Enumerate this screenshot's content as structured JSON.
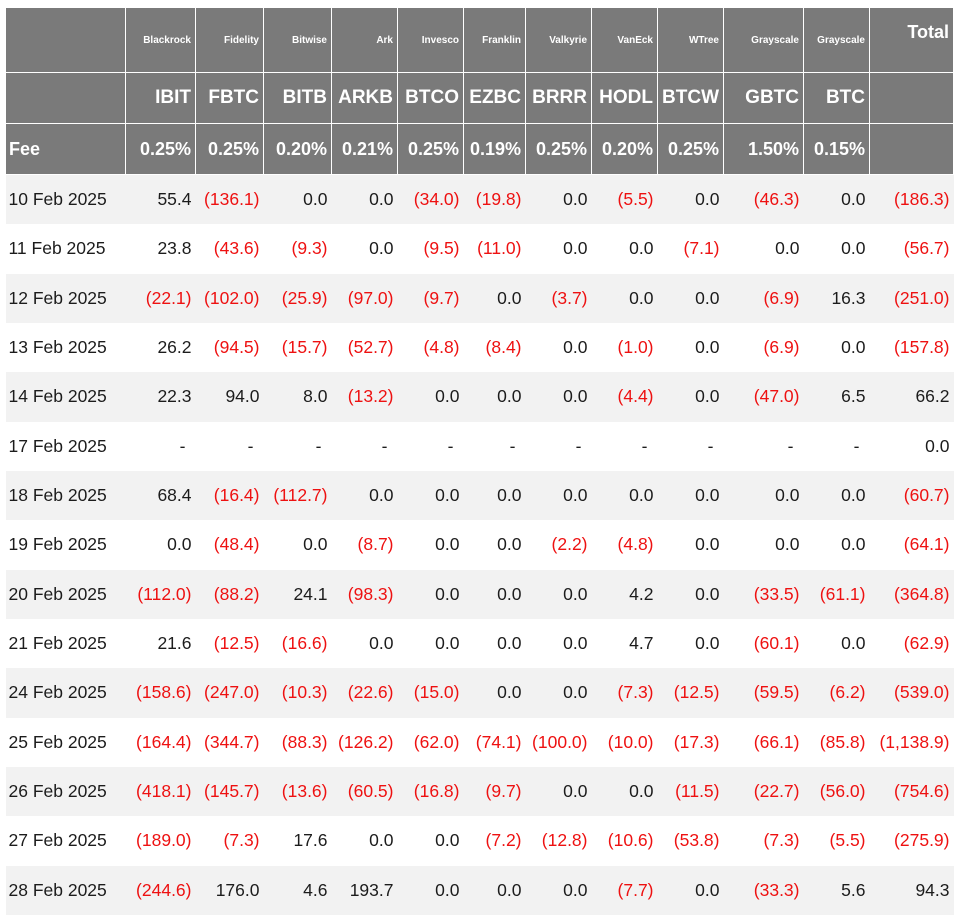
{
  "table": {
    "columns": [
      {
        "issuer": "Blackrock",
        "ticker": "IBIT",
        "fee": "0.25%"
      },
      {
        "issuer": "Fidelity",
        "ticker": "FBTC",
        "fee": "0.25%"
      },
      {
        "issuer": "Bitwise",
        "ticker": "BITB",
        "fee": "0.20%"
      },
      {
        "issuer": "Ark",
        "ticker": "ARKB",
        "fee": "0.21%"
      },
      {
        "issuer": "Invesco",
        "ticker": "BTCO",
        "fee": "0.25%"
      },
      {
        "issuer": "Franklin",
        "ticker": "EZBC",
        "fee": "0.19%"
      },
      {
        "issuer": "Valkyrie",
        "ticker": "BRRR",
        "fee": "0.25%"
      },
      {
        "issuer": "VanEck",
        "ticker": "HODL",
        "fee": "0.20%"
      },
      {
        "issuer": "WTree",
        "ticker": "BTCW",
        "fee": "0.25%"
      },
      {
        "issuer": "Grayscale",
        "ticker": "GBTC",
        "fee": "1.50%"
      },
      {
        "issuer": "Grayscale",
        "ticker": "BTC",
        "fee": "0.15%"
      }
    ],
    "total_label": "Total",
    "fee_label": "Fee",
    "rows": [
      {
        "date": "10 Feb 2025",
        "values": [
          "55.4",
          "(136.1)",
          "0.0",
          "0.0",
          "(34.0)",
          "(19.8)",
          "0.0",
          "(5.5)",
          "0.0",
          "(46.3)",
          "0.0"
        ],
        "total": "(186.3)"
      },
      {
        "date": "11 Feb 2025",
        "values": [
          "23.8",
          "(43.6)",
          "(9.3)",
          "0.0",
          "(9.5)",
          "(11.0)",
          "0.0",
          "0.0",
          "(7.1)",
          "0.0",
          "0.0"
        ],
        "total": "(56.7)"
      },
      {
        "date": "12 Feb 2025",
        "values": [
          "(22.1)",
          "(102.0)",
          "(25.9)",
          "(97.0)",
          "(9.7)",
          "0.0",
          "(3.7)",
          "0.0",
          "0.0",
          "(6.9)",
          "16.3"
        ],
        "total": "(251.0)"
      },
      {
        "date": "13 Feb 2025",
        "values": [
          "26.2",
          "(94.5)",
          "(15.7)",
          "(52.7)",
          "(4.8)",
          "(8.4)",
          "0.0",
          "(1.0)",
          "0.0",
          "(6.9)",
          "0.0"
        ],
        "total": "(157.8)"
      },
      {
        "date": "14 Feb 2025",
        "values": [
          "22.3",
          "94.0",
          "8.0",
          "(13.2)",
          "0.0",
          "0.0",
          "0.0",
          "(4.4)",
          "0.0",
          "(47.0)",
          "6.5"
        ],
        "total": "66.2"
      },
      {
        "date": "17 Feb 2025",
        "values": [
          "-",
          "-",
          "-",
          "-",
          "-",
          "-",
          "-",
          "-",
          "-",
          "-",
          "-"
        ],
        "total": "0.0"
      },
      {
        "date": "18 Feb 2025",
        "values": [
          "68.4",
          "(16.4)",
          "(112.7)",
          "0.0",
          "0.0",
          "0.0",
          "0.0",
          "0.0",
          "0.0",
          "0.0",
          "0.0"
        ],
        "total": "(60.7)"
      },
      {
        "date": "19 Feb 2025",
        "values": [
          "0.0",
          "(48.4)",
          "0.0",
          "(8.7)",
          "0.0",
          "0.0",
          "(2.2)",
          "(4.8)",
          "0.0",
          "0.0",
          "0.0"
        ],
        "total": "(64.1)"
      },
      {
        "date": "20 Feb 2025",
        "values": [
          "(112.0)",
          "(88.2)",
          "24.1",
          "(98.3)",
          "0.0",
          "0.0",
          "0.0",
          "4.2",
          "0.0",
          "(33.5)",
          "(61.1)"
        ],
        "total": "(364.8)"
      },
      {
        "date": "21 Feb 2025",
        "values": [
          "21.6",
          "(12.5)",
          "(16.6)",
          "0.0",
          "0.0",
          "0.0",
          "0.0",
          "4.7",
          "0.0",
          "(60.1)",
          "0.0"
        ],
        "total": "(62.9)"
      },
      {
        "date": "24 Feb 2025",
        "values": [
          "(158.6)",
          "(247.0)",
          "(10.3)",
          "(22.6)",
          "(15.0)",
          "0.0",
          "0.0",
          "(7.3)",
          "(12.5)",
          "(59.5)",
          "(6.2)"
        ],
        "total": "(539.0)"
      },
      {
        "date": "25 Feb 2025",
        "values": [
          "(164.4)",
          "(344.7)",
          "(88.3)",
          "(126.2)",
          "(62.0)",
          "(74.1)",
          "(100.0)",
          "(10.0)",
          "(17.3)",
          "(66.1)",
          "(85.8)"
        ],
        "total": "(1,138.9)"
      },
      {
        "date": "26 Feb 2025",
        "values": [
          "(418.1)",
          "(145.7)",
          "(13.6)",
          "(60.5)",
          "(16.8)",
          "(9.7)",
          "0.0",
          "0.0",
          "(11.5)",
          "(22.7)",
          "(56.0)"
        ],
        "total": "(754.6)"
      },
      {
        "date": "27 Feb 2025",
        "values": [
          "(189.0)",
          "(7.3)",
          "17.6",
          "0.0",
          "0.0",
          "(7.2)",
          "(12.8)",
          "(10.6)",
          "(53.8)",
          "(7.3)",
          "(5.5)"
        ],
        "total": "(275.9)"
      },
      {
        "date": "28 Feb 2025",
        "values": [
          "(244.6)",
          "176.0",
          "4.6",
          "193.7",
          "0.0",
          "0.0",
          "0.0",
          "(7.7)",
          "0.0",
          "(33.3)",
          "5.6"
        ],
        "total": "94.3"
      }
    ]
  },
  "colors": {
    "header_bg": "#7a7a7a",
    "header_text": "#ffffff",
    "negative": "#ee1111",
    "stripe": "#f2f2f2"
  }
}
